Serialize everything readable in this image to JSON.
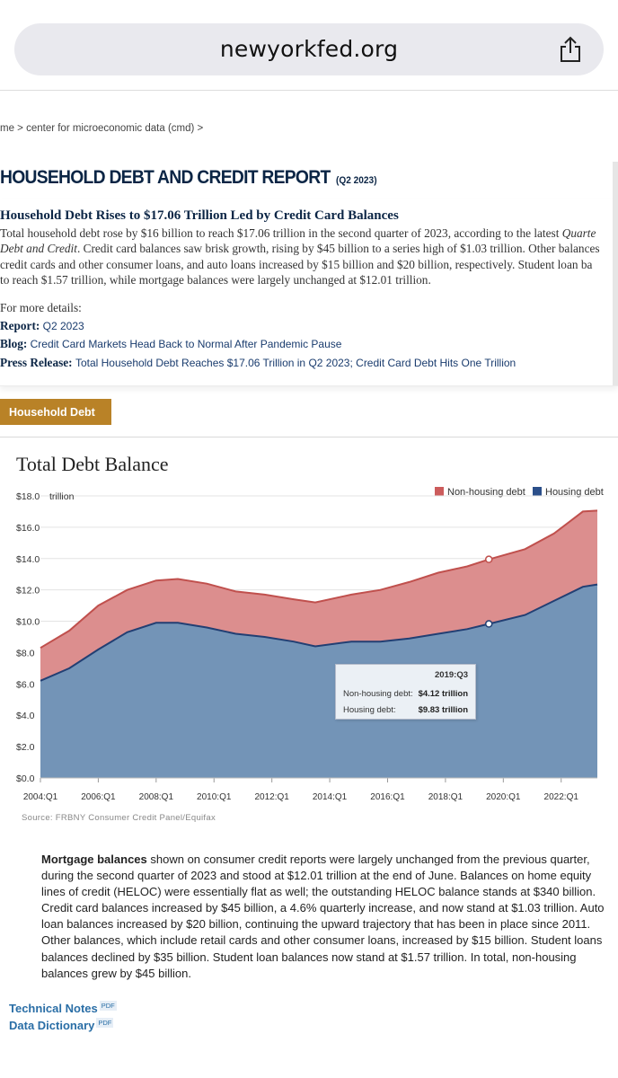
{
  "browser": {
    "url": "newyorkfed.org",
    "share_icon": "share-icon"
  },
  "breadcrumb": "me > center for microeconomic data (cmd) >",
  "title": {
    "main": "HOUSEHOLD DEBT AND CREDIT REPORT",
    "sub": "(Q2 2023)"
  },
  "summary": {
    "headline": "Household Debt Rises to $17.06 Trillion Led by Credit Card Balances",
    "lines": [
      "Total household debt rose by $16 billion to reach $17.06 trillion in the second quarter of 2023, according to the latest",
      "Debt and Credit",
      ". Credit card balances saw brisk growth, rising by $45 billion to a series high of $1.03 trillion. Other balances",
      "credit cards and other consumer loans, and auto loans increased by $15 billion and $20 billion, respectively. Student loan ba",
      "to reach $1.57 trillion, while mortgage balances were largely unchanged at $12.01 trillion."
    ],
    "line1_italic": "Quarte"
  },
  "details": {
    "intro": "For more details:",
    "report_label": "Report:",
    "report_value": "Q2 2023",
    "blog_label": "Blog:",
    "blog_value": "Credit Card Markets Head Back to Normal After Pandemic Pause",
    "press_label": "Press Release:",
    "press_value": "Total Household Debt Reaches $17.06 Trillion in Q2 2023; Credit Card Debt Hits One Trillion"
  },
  "household_button": "Household Debt",
  "chart_data": {
    "type": "area",
    "title": "Total Debt Balance",
    "ylabel": "trillion",
    "ylim": [
      0,
      18
    ],
    "yticks": [
      "$18.0",
      "$16.0",
      "$14.0",
      "$12.0",
      "$10.0",
      "$8.0",
      "$6.0",
      "$4.0",
      "$2.0",
      "$0.0"
    ],
    "xticks": [
      "2004:Q1",
      "2006:Q1",
      "2008:Q1",
      "2010:Q1",
      "2012:Q1",
      "2014:Q1",
      "2016:Q1",
      "2018:Q1",
      "2020:Q1",
      "2022:Q1"
    ],
    "legend": [
      "Non-housing debt",
      "Housing debt"
    ],
    "legend_position": "top-right",
    "colors": {
      "non_housing": "#cc5c5c",
      "housing": "#2b4f8a"
    },
    "series": [
      {
        "name": "Housing debt",
        "x": [
          "2004:Q1",
          "2005:Q1",
          "2006:Q1",
          "2007:Q1",
          "2008:Q1",
          "2008:Q4",
          "2009:Q4",
          "2010:Q4",
          "2011:Q4",
          "2012:Q4",
          "2013:Q3",
          "2014:Q4",
          "2015:Q4",
          "2016:Q4",
          "2017:Q4",
          "2018:Q4",
          "2019:Q3",
          "2020:Q4",
          "2021:Q4",
          "2022:Q4",
          "2023:Q2"
        ],
        "values": [
          6.2,
          7.0,
          8.2,
          9.3,
          9.9,
          9.9,
          9.6,
          9.2,
          9.0,
          8.7,
          8.4,
          8.7,
          8.7,
          8.9,
          9.2,
          9.5,
          9.83,
          10.4,
          11.3,
          12.2,
          12.35
        ]
      },
      {
        "name": "Total debt",
        "x": [
          "2004:Q1",
          "2005:Q1",
          "2006:Q1",
          "2007:Q1",
          "2008:Q1",
          "2008:Q4",
          "2009:Q4",
          "2010:Q4",
          "2011:Q4",
          "2012:Q4",
          "2013:Q3",
          "2014:Q4",
          "2015:Q4",
          "2016:Q4",
          "2017:Q4",
          "2018:Q4",
          "2019:Q3",
          "2020:Q4",
          "2021:Q4",
          "2022:Q4",
          "2023:Q2"
        ],
        "values": [
          8.3,
          9.4,
          11.0,
          12.0,
          12.6,
          12.7,
          12.4,
          11.9,
          11.7,
          11.4,
          11.2,
          11.7,
          12.0,
          12.5,
          13.1,
          13.5,
          13.95,
          14.6,
          15.6,
          17.0,
          17.06
        ]
      }
    ],
    "highlight": {
      "x": "2019:Q3",
      "non_housing": 4.12,
      "housing": 9.83
    },
    "source": "Source:  FRBNY Consumer Credit Panel/Equifax"
  },
  "tooltip": {
    "date": "2019:Q3",
    "non_housing_label": "Non-housing debt:",
    "non_housing_value": "$4.12 trillion",
    "housing_label": "Housing debt:",
    "housing_value": "$9.83 trillion"
  },
  "body": {
    "bold": "Mortgage balances",
    "lines": [
      " shown on consumer credit reports were largely unchanged from the previous quarter,",
      "during the second quarter of 2023 and stood at $12.01 trillion at the end of June. Balances on home equity",
      "lines of credit (HELOC) were essentially flat as well; the outstanding HELOC balance stands at $340 billion.",
      "Credit card balances increased by $45 billion, a 4.6% quarterly increase, and now stand at $1.03 trillion. Auto",
      "loan balances increased by $20 billion, continuing the upward trajectory that has been in place since 2011.",
      "Other balances, which include retail cards and other consumer loans, increased by $15 billion. Student loans",
      "balances declined by $35 billion. Student loan balances now stand at $1.57 trillion. In total, non-housing",
      "balances grew by $45 billion."
    ]
  },
  "links": {
    "technical_notes": "Technical Notes",
    "data_dictionary": "Data Dictionary",
    "pdf": "PDF"
  }
}
